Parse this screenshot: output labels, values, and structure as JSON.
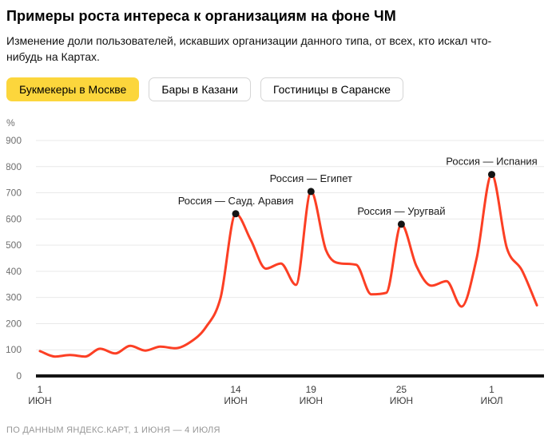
{
  "header": {
    "title": "Примеры роста интереса к организациям на фоне ЧМ",
    "subtitle": "Изменение доли пользователей, искавших организации данного типа, от всех, кто искал что-\nнибудь на Картах."
  },
  "tabs": [
    {
      "slug": "bookmakers-moscow",
      "label": "Букмекеры в Москве",
      "active": true
    },
    {
      "slug": "bars-kazan",
      "label": "Бары в Казани",
      "active": false
    },
    {
      "slug": "hotels-saransk",
      "label": "Гостиницы в Саранске",
      "active": false
    }
  ],
  "chart_data": {
    "type": "line",
    "unit": "%",
    "ylim": [
      0,
      900
    ],
    "y_ticks": [
      0,
      100,
      200,
      300,
      400,
      500,
      600,
      700,
      800,
      900
    ],
    "grid": true,
    "legend": false,
    "x_range": {
      "start_day": 0,
      "end_day": 33,
      "start_date": "1 июня",
      "end_date": "4 июля"
    },
    "x_ticks": [
      {
        "day": 0,
        "label_top": "1",
        "label_bottom": "ИЮН"
      },
      {
        "day": 13,
        "label_top": "14",
        "label_bottom": "ИЮН"
      },
      {
        "day": 18,
        "label_top": "19",
        "label_bottom": "ИЮН"
      },
      {
        "day": 24,
        "label_top": "25",
        "label_bottom": "ИЮН"
      },
      {
        "day": 30,
        "label_top": "1",
        "label_bottom": "ИЮЛ"
      }
    ],
    "series": [
      {
        "name": "Букмекеры в Москве",
        "x_days": [
          0,
          1,
          2,
          3,
          4,
          5,
          6,
          7,
          8,
          9,
          10,
          11,
          12,
          13,
          14,
          15,
          16,
          17,
          18,
          19,
          20,
          21,
          22,
          23,
          24,
          25,
          26,
          27,
          28,
          29,
          30,
          31,
          32,
          33
        ],
        "values": [
          95,
          74,
          80,
          74,
          104,
          86,
          115,
          97,
          112,
          106,
          130,
          185,
          300,
          620,
          520,
          410,
          430,
          348,
          705,
          480,
          430,
          425,
          312,
          318,
          580,
          420,
          345,
          362,
          265,
          450,
          770,
          490,
          405,
          270
        ]
      }
    ],
    "annotations": [
      {
        "day": 13,
        "value": 620,
        "label": "Россия — Сауд. Аравия"
      },
      {
        "day": 18,
        "value": 705,
        "label": "Россия — Египет"
      },
      {
        "day": 24,
        "value": 580,
        "label": "Россия — Уругвай"
      },
      {
        "day": 30,
        "value": 770,
        "label": "Россия — Испания"
      }
    ]
  },
  "colors": {
    "line": "#fc3f24",
    "dot": "#141414",
    "grid": "#e9e9e9",
    "baseline": "#141414",
    "axis_text": "#6f6f6f",
    "tick_text": "#3c3c3c",
    "annotation_text": "#1a1a1a",
    "tab_active_bg": "#fcd63c",
    "footer_text": "#979797"
  },
  "footer": {
    "source": "ПО ДАННЫМ ЯНДЕКС.КАРТ, 1 ИЮНЯ — 4 ИЮЛЯ"
  }
}
